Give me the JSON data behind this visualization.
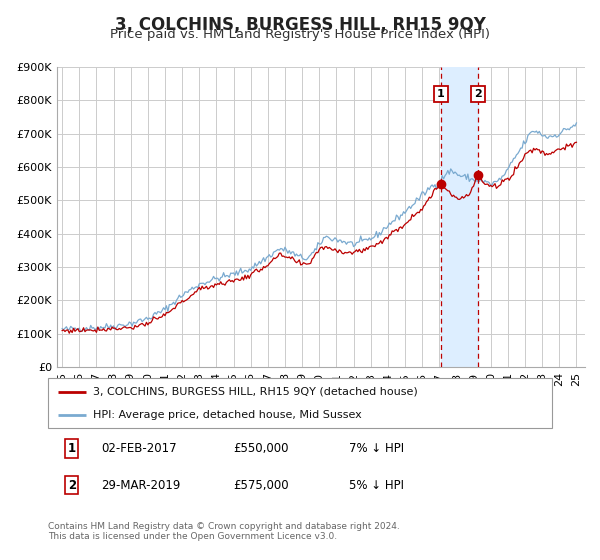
{
  "title": "3, COLCHINS, BURGESS HILL, RH15 9QY",
  "subtitle": "Price paid vs. HM Land Registry's House Price Index (HPI)",
  "ylim": [
    0,
    900000
  ],
  "yticks": [
    0,
    100000,
    200000,
    300000,
    400000,
    500000,
    600000,
    700000,
    800000,
    900000
  ],
  "ytick_labels": [
    "£0",
    "£100K",
    "£200K",
    "£300K",
    "£400K",
    "£500K",
    "£600K",
    "£700K",
    "£800K",
    "£900K"
  ],
  "xlim_start": 1994.7,
  "xlim_end": 2025.5,
  "xticks": [
    1995,
    1996,
    1997,
    1998,
    1999,
    2000,
    2001,
    2002,
    2003,
    2004,
    2005,
    2006,
    2007,
    2008,
    2009,
    2010,
    2011,
    2012,
    2013,
    2014,
    2015,
    2016,
    2017,
    2018,
    2019,
    2020,
    2021,
    2022,
    2023,
    2024,
    2025
  ],
  "sale1_date": 2017.085,
  "sale1_value": 550000,
  "sale2_date": 2019.247,
  "sale2_value": 575000,
  "legend_label_red": "3, COLCHINS, BURGESS HILL, RH15 9QY (detached house)",
  "legend_label_blue": "HPI: Average price, detached house, Mid Sussex",
  "table_row1": [
    "1",
    "02-FEB-2017",
    "£550,000",
    "7% ↓ HPI"
  ],
  "table_row2": [
    "2",
    "29-MAR-2019",
    "£575,000",
    "5% ↓ HPI"
  ],
  "footnote": "Contains HM Land Registry data © Crown copyright and database right 2024.\nThis data is licensed under the Open Government Licence v3.0.",
  "red_color": "#bb0000",
  "blue_color": "#7aaad0",
  "background_color": "#ffffff",
  "grid_color": "#cccccc",
  "shade_color": "#ddeeff",
  "title_fontsize": 12,
  "subtitle_fontsize": 9.5,
  "tick_fontsize": 8,
  "legend_fontsize": 8,
  "table_fontsize": 8.5,
  "footnote_fontsize": 6.5,
  "hpi_anchors": [
    [
      1995.0,
      112000
    ],
    [
      1996.0,
      115000
    ],
    [
      1997.0,
      118000
    ],
    [
      1998.0,
      122000
    ],
    [
      1999.0,
      130000
    ],
    [
      2000.0,
      145000
    ],
    [
      2001.0,
      172000
    ],
    [
      2002.0,
      215000
    ],
    [
      2003.0,
      248000
    ],
    [
      2004.0,
      265000
    ],
    [
      2005.0,
      278000
    ],
    [
      2006.0,
      295000
    ],
    [
      2007.0,
      330000
    ],
    [
      2007.7,
      355000
    ],
    [
      2008.3,
      345000
    ],
    [
      2008.8,
      330000
    ],
    [
      2009.3,
      325000
    ],
    [
      2009.8,
      350000
    ],
    [
      2010.3,
      390000
    ],
    [
      2010.8,
      385000
    ],
    [
      2011.5,
      375000
    ],
    [
      2012.0,
      368000
    ],
    [
      2012.5,
      375000
    ],
    [
      2013.0,
      385000
    ],
    [
      2013.5,
      400000
    ],
    [
      2014.0,
      425000
    ],
    [
      2014.5,
      445000
    ],
    [
      2015.0,
      465000
    ],
    [
      2015.5,
      490000
    ],
    [
      2016.0,
      515000
    ],
    [
      2016.5,
      540000
    ],
    [
      2017.0,
      555000
    ],
    [
      2017.3,
      575000
    ],
    [
      2017.7,
      590000
    ],
    [
      2018.0,
      580000
    ],
    [
      2018.3,
      572000
    ],
    [
      2018.7,
      568000
    ],
    [
      2019.0,
      560000
    ],
    [
      2019.3,
      560000
    ],
    [
      2019.7,
      555000
    ],
    [
      2020.0,
      548000
    ],
    [
      2020.5,
      560000
    ],
    [
      2021.0,
      590000
    ],
    [
      2021.3,
      620000
    ],
    [
      2021.7,
      650000
    ],
    [
      2022.0,
      675000
    ],
    [
      2022.3,
      700000
    ],
    [
      2022.6,
      710000
    ],
    [
      2022.9,
      700000
    ],
    [
      2023.3,
      690000
    ],
    [
      2023.7,
      695000
    ],
    [
      2024.0,
      700000
    ],
    [
      2024.3,
      710000
    ],
    [
      2024.7,
      720000
    ],
    [
      2025.0,
      730000
    ]
  ],
  "red_anchors": [
    [
      1995.0,
      108000
    ],
    [
      1996.0,
      110000
    ],
    [
      1997.0,
      112000
    ],
    [
      1998.0,
      115000
    ],
    [
      1999.0,
      118000
    ],
    [
      2000.0,
      130000
    ],
    [
      2001.0,
      155000
    ],
    [
      2002.0,
      195000
    ],
    [
      2003.0,
      232000
    ],
    [
      2004.0,
      248000
    ],
    [
      2005.0,
      258000
    ],
    [
      2006.0,
      275000
    ],
    [
      2007.0,
      308000
    ],
    [
      2007.7,
      335000
    ],
    [
      2008.3,
      325000
    ],
    [
      2008.8,
      312000
    ],
    [
      2009.0,
      305000
    ],
    [
      2009.4,
      310000
    ],
    [
      2010.0,
      355000
    ],
    [
      2010.5,
      360000
    ],
    [
      2011.0,
      350000
    ],
    [
      2011.5,
      345000
    ],
    [
      2012.0,
      343000
    ],
    [
      2012.5,
      350000
    ],
    [
      2013.0,
      360000
    ],
    [
      2013.5,
      373000
    ],
    [
      2014.0,
      390000
    ],
    [
      2014.5,
      410000
    ],
    [
      2015.0,
      430000
    ],
    [
      2015.5,
      455000
    ],
    [
      2016.0,
      478000
    ],
    [
      2016.5,
      510000
    ],
    [
      2017.085,
      550000
    ],
    [
      2017.4,
      535000
    ],
    [
      2017.8,
      515000
    ],
    [
      2018.0,
      508000
    ],
    [
      2018.4,
      510000
    ],
    [
      2018.8,
      520000
    ],
    [
      2019.247,
      575000
    ],
    [
      2019.5,
      558000
    ],
    [
      2019.8,
      545000
    ],
    [
      2020.0,
      538000
    ],
    [
      2020.4,
      545000
    ],
    [
      2020.8,
      558000
    ],
    [
      2021.2,
      575000
    ],
    [
      2021.6,
      605000
    ],
    [
      2022.0,
      635000
    ],
    [
      2022.3,
      650000
    ],
    [
      2022.7,
      655000
    ],
    [
      2023.0,
      645000
    ],
    [
      2023.3,
      638000
    ],
    [
      2023.7,
      648000
    ],
    [
      2024.0,
      655000
    ],
    [
      2024.3,
      660000
    ],
    [
      2024.7,
      663000
    ],
    [
      2025.0,
      668000
    ]
  ]
}
